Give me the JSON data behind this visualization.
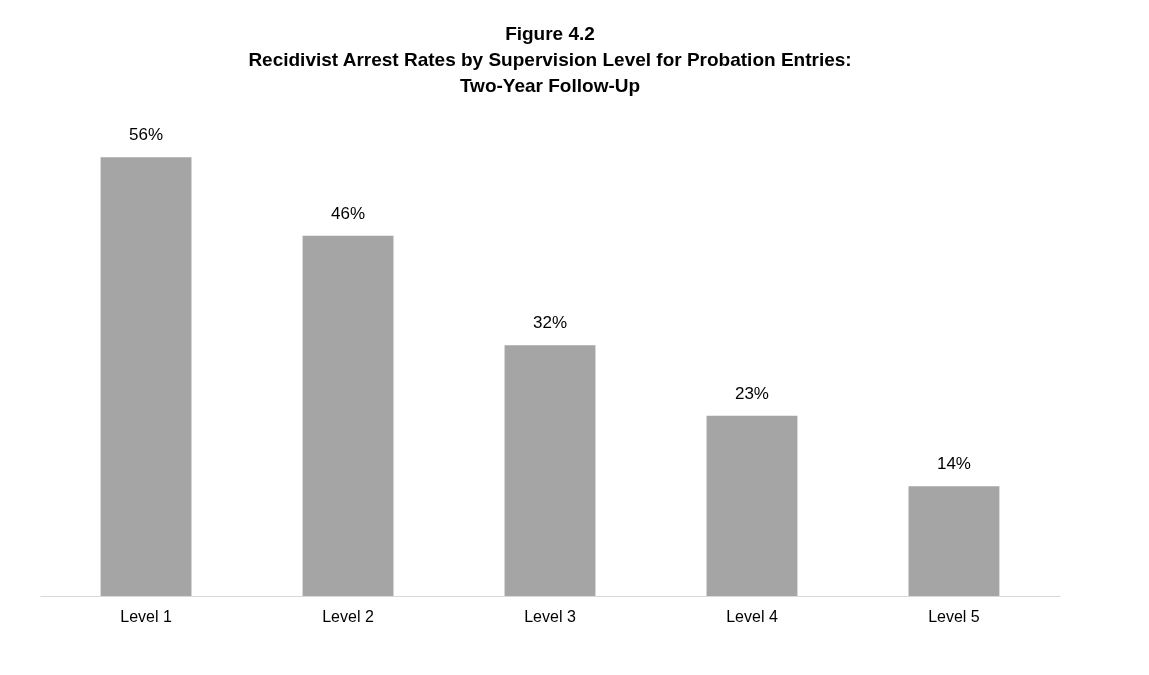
{
  "chart_data": {
    "type": "bar",
    "title": "Figure 4.2",
    "subtitle": "Recidivist Arrest Rates by Supervision Level for Probation Entries: Two-Year Follow-Up",
    "categories": [
      "Level 1",
      "Level 2",
      "Level 3",
      "Level 4",
      "Level 5"
    ],
    "values": [
      56,
      46,
      32,
      23,
      14
    ],
    "value_labels": [
      "56%",
      "46%",
      "32%",
      "23%",
      "14%"
    ],
    "color": "#a5a5a5",
    "tick_labels": "x",
    "grid": false
  }
}
